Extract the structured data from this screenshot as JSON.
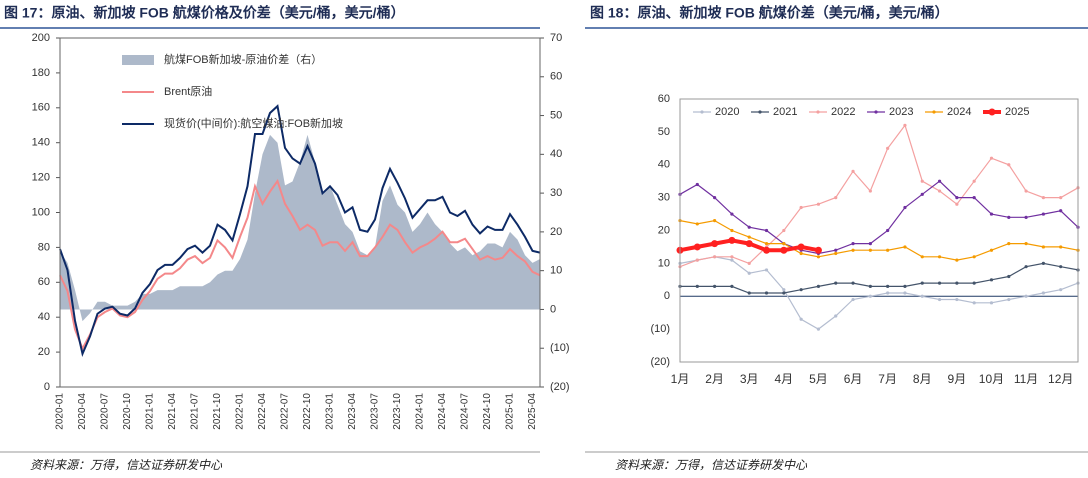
{
  "chart_data": [
    {
      "type": "combo",
      "title": "图 17：原油、新加坡 FOB 航煤价格及价差（美元/桶，美元/桶）",
      "source": "资料来源：万得，信达证券研发中心",
      "categories": [
        "2020-01",
        null,
        null,
        "2020-04",
        null,
        null,
        "2020-07",
        null,
        null,
        "2020-10",
        null,
        null,
        "2021-01",
        null,
        null,
        "2021-04",
        null,
        null,
        "2021-07",
        null,
        null,
        "2021-10",
        null,
        null,
        "2022-01",
        null,
        null,
        "2022-04",
        null,
        null,
        "2022-07",
        null,
        null,
        "2022-10",
        null,
        null,
        "2023-01",
        null,
        null,
        "2023-04",
        null,
        null,
        "2023-07",
        null,
        null,
        "2023-10",
        null,
        null,
        "2024-01",
        null,
        null,
        "2024-04",
        null,
        null,
        "2024-07",
        null,
        null,
        "2024-10",
        null,
        null,
        "2025-01",
        null,
        null,
        "2025-04",
        null
      ],
      "series": [
        {
          "name": "航煤FOB新加坡-原油价差（右）",
          "type": "area",
          "axis": "y2",
          "color": "#adb9ca",
          "values": [
            15,
            12,
            5,
            -3,
            -1,
            2,
            2,
            1,
            1,
            1,
            2,
            4,
            4,
            5,
            5,
            5,
            6,
            6,
            6,
            6,
            7,
            9,
            10,
            10,
            13,
            18,
            30,
            40,
            45,
            43,
            32,
            33,
            38,
            45,
            38,
            30,
            32,
            27,
            22,
            20,
            15,
            14,
            16,
            28,
            32,
            27,
            25,
            20,
            22,
            25,
            22,
            20,
            17,
            15,
            16,
            14,
            15,
            17,
            17,
            16,
            20,
            18,
            14,
            12,
            13
          ]
        },
        {
          "name": "Brent原油",
          "type": "line",
          "color": "#f4888a",
          "values": [
            64,
            55,
            33,
            22,
            30,
            40,
            43,
            45,
            41,
            40,
            43,
            50,
            55,
            62,
            65,
            65,
            68,
            73,
            75,
            71,
            74,
            84,
            80,
            74,
            86,
            97,
            115,
            105,
            112,
            118,
            105,
            98,
            90,
            93,
            90,
            81,
            83,
            83,
            78,
            83,
            75,
            75,
            80,
            86,
            93,
            90,
            83,
            77,
            80,
            82,
            85,
            89,
            83,
            83,
            85,
            79,
            73,
            75,
            73,
            74,
            79,
            75,
            72,
            66,
            64
          ]
        },
        {
          "name": "现货价(中间价):航空煤油:FOB新加坡",
          "type": "line",
          "color": "#0d2a66",
          "values": [
            79,
            67,
            38,
            19,
            29,
            42,
            45,
            46,
            42,
            41,
            45,
            54,
            59,
            67,
            70,
            70,
            74,
            79,
            81,
            77,
            81,
            93,
            90,
            84,
            99,
            115,
            145,
            145,
            157,
            161,
            137,
            131,
            128,
            138,
            128,
            111,
            115,
            110,
            100,
            103,
            90,
            89,
            96,
            114,
            125,
            117,
            108,
            97,
            102,
            107,
            107,
            109,
            100,
            98,
            101,
            93,
            88,
            92,
            90,
            90,
            99,
            93,
            86,
            78,
            77
          ]
        }
      ],
      "ylim": [
        0,
        200
      ],
      "yticks": [
        0,
        20,
        40,
        60,
        80,
        100,
        120,
        140,
        160,
        180,
        200
      ],
      "y2lim": [
        -20,
        70
      ],
      "y2ticks": [
        {
          "value": -20,
          "label": "(20)"
        },
        {
          "value": -10,
          "label": "(10)"
        },
        0,
        10,
        20,
        30,
        40,
        50,
        60,
        70
      ],
      "negative_tick_color": "#e00000",
      "grid": false
    },
    {
      "type": "line",
      "title": "图 18：原油、新加坡 FOB 航煤价差（美元/桶，美元/桶）",
      "source": "资料来源：万得，信达证券研发中心",
      "categories": [
        "1月",
        null,
        "2月",
        null,
        "3月",
        null,
        "4月",
        null,
        "5月",
        null,
        "6月",
        null,
        "7月",
        null,
        "8月",
        null,
        "9月",
        null,
        "10月",
        null,
        "11月",
        null,
        "12月",
        null
      ],
      "series": [
        {
          "name": "2020",
          "color": "#b4bdd0",
          "values": [
            10,
            11,
            12,
            11,
            7,
            8,
            2,
            -7,
            -10,
            -6,
            -1,
            0,
            1,
            1,
            0,
            -1,
            -1,
            -2,
            -2,
            -1,
            0,
            1,
            2,
            4
          ]
        },
        {
          "name": "2021",
          "color": "#44546a",
          "values": [
            3,
            3,
            3,
            3,
            1,
            1,
            1,
            2,
            3,
            4,
            4,
            3,
            3,
            3,
            4,
            4,
            4,
            4,
            5,
            6,
            9,
            10,
            9,
            8
          ]
        },
        {
          "name": "2022",
          "color": "#f4a0a0",
          "values": [
            9,
            11,
            12,
            12,
            10,
            15,
            20,
            27,
            28,
            30,
            38,
            32,
            45,
            52,
            35,
            32,
            28,
            35,
            42,
            40,
            32,
            30,
            30,
            33
          ]
        },
        {
          "name": "2023",
          "color": "#7030a0",
          "values": [
            31,
            34,
            30,
            25,
            21,
            20,
            16,
            14,
            13,
            14,
            16,
            16,
            20,
            27,
            31,
            35,
            30,
            30,
            25,
            24,
            24,
            25,
            26,
            21
          ]
        },
        {
          "name": "2024",
          "color": "#f59b00",
          "values": [
            23,
            22,
            23,
            20,
            18,
            16,
            16,
            13,
            12,
            13,
            14,
            14,
            14,
            15,
            12,
            12,
            11,
            12,
            14,
            16,
            16,
            15,
            15,
            14
          ]
        },
        {
          "name": "2025",
          "color": "#ff2020",
          "values": [
            14,
            15,
            16,
            17,
            16,
            14,
            14,
            15,
            14,
            null,
            null,
            null,
            null,
            null,
            null,
            null,
            null,
            null,
            null,
            null,
            null,
            null,
            null,
            null
          ]
        }
      ],
      "ylim": [
        -20,
        60
      ],
      "yticks": [
        {
          "value": -20,
          "label": "(20)"
        },
        {
          "value": -10,
          "label": "(10)"
        },
        0,
        10,
        20,
        30,
        40,
        50,
        60
      ],
      "negative_tick_color": "#e00000",
      "grid": false
    }
  ]
}
